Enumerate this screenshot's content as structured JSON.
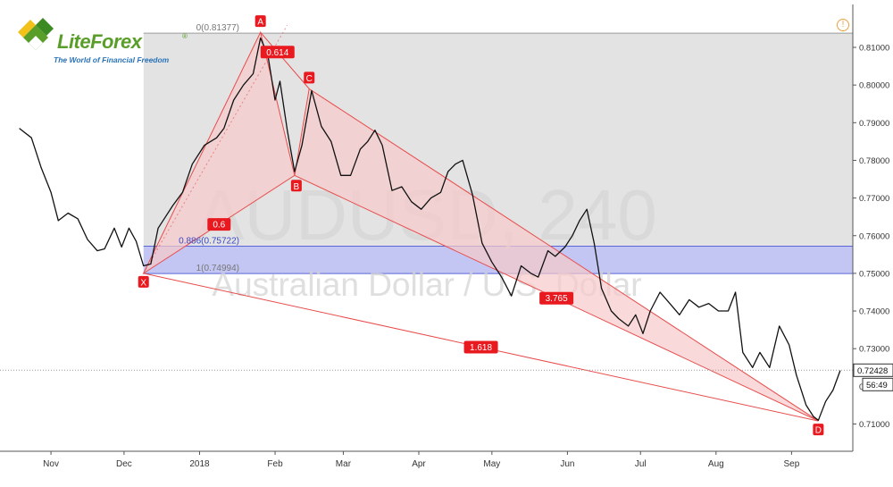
{
  "brand": {
    "name": "LiteForex",
    "registered": "®",
    "tagline": "The World of Financial Freedom"
  },
  "watermark": {
    "symbol": "AUDUSD, 240",
    "description": "Australian Dollar / U.S. Dollar"
  },
  "alert_icon": "!",
  "colors": {
    "pattern_fill": "#f6c9c9",
    "pattern_line": "#e84c4c",
    "label_bg": "#e8191f",
    "fib_zone": "#e3e3e3",
    "blue_zone": "#b8bcf0",
    "price_line": "#111111"
  },
  "chart_data": {
    "type": "line",
    "title": "",
    "xlabel": "",
    "ylabel": "",
    "x_ticks": [
      "Nov",
      "Dec",
      "2018",
      "Feb",
      "Mar",
      "Apr",
      "May",
      "Jun",
      "Jul",
      "Aug",
      "Sep"
    ],
    "y_ticks": [
      "0.81000",
      "0.80000",
      "0.79000",
      "0.78000",
      "0.77000",
      "0.76000",
      "0.75000",
      "0.74000",
      "0.73000",
      "0.71000"
    ],
    "ylim": [
      0.7035,
      0.8183
    ],
    "current_price": "0.72428",
    "countdown": "56:49",
    "grid": false,
    "price_series": [
      {
        "d": "2017-10-19",
        "v": 0.7885
      },
      {
        "d": "2017-10-24",
        "v": 0.786
      },
      {
        "d": "2017-10-28",
        "v": 0.778
      },
      {
        "d": "2017-11-01",
        "v": 0.7715
      },
      {
        "d": "2017-11-04",
        "v": 0.764
      },
      {
        "d": "2017-11-08",
        "v": 0.766
      },
      {
        "d": "2017-11-12",
        "v": 0.7645
      },
      {
        "d": "2017-11-16",
        "v": 0.759
      },
      {
        "d": "2017-11-20",
        "v": 0.756
      },
      {
        "d": "2017-11-23",
        "v": 0.7565
      },
      {
        "d": "2017-11-27",
        "v": 0.762
      },
      {
        "d": "2017-11-30",
        "v": 0.757
      },
      {
        "d": "2017-12-03",
        "v": 0.762
      },
      {
        "d": "2017-12-06",
        "v": 0.7585
      },
      {
        "d": "2017-12-09",
        "v": 0.752
      },
      {
        "d": "2017-12-12",
        "v": 0.7525
      },
      {
        "d": "2017-12-15",
        "v": 0.762
      },
      {
        "d": "2017-12-18",
        "v": 0.765
      },
      {
        "d": "2017-12-21",
        "v": 0.768
      },
      {
        "d": "2017-12-25",
        "v": 0.7715
      },
      {
        "d": "2017-12-29",
        "v": 0.779
      },
      {
        "d": "2018-01-03",
        "v": 0.784
      },
      {
        "d": "2018-01-08",
        "v": 0.786
      },
      {
        "d": "2018-01-11",
        "v": 0.7885
      },
      {
        "d": "2018-01-15",
        "v": 0.796
      },
      {
        "d": "2018-01-19",
        "v": 0.8
      },
      {
        "d": "2018-01-23",
        "v": 0.803
      },
      {
        "d": "2018-01-26",
        "v": 0.8125
      },
      {
        "d": "2018-01-29",
        "v": 0.808
      },
      {
        "d": "2018-02-01",
        "v": 0.796
      },
      {
        "d": "2018-02-03",
        "v": 0.801
      },
      {
        "d": "2018-02-06",
        "v": 0.788
      },
      {
        "d": "2018-02-09",
        "v": 0.777
      },
      {
        "d": "2018-02-12",
        "v": 0.784
      },
      {
        "d": "2018-02-16",
        "v": 0.7985
      },
      {
        "d": "2018-02-20",
        "v": 0.789
      },
      {
        "d": "2018-02-24",
        "v": 0.785
      },
      {
        "d": "2018-02-28",
        "v": 0.776
      },
      {
        "d": "2018-03-04",
        "v": 0.776
      },
      {
        "d": "2018-03-08",
        "v": 0.783
      },
      {
        "d": "2018-03-11",
        "v": 0.785
      },
      {
        "d": "2018-03-14",
        "v": 0.788
      },
      {
        "d": "2018-03-17",
        "v": 0.784
      },
      {
        "d": "2018-03-21",
        "v": 0.772
      },
      {
        "d": "2018-03-25",
        "v": 0.773
      },
      {
        "d": "2018-03-29",
        "v": 0.769
      },
      {
        "d": "2018-04-02",
        "v": 0.767
      },
      {
        "d": "2018-04-06",
        "v": 0.77
      },
      {
        "d": "2018-04-10",
        "v": 0.7715
      },
      {
        "d": "2018-04-13",
        "v": 0.777
      },
      {
        "d": "2018-04-16",
        "v": 0.779
      },
      {
        "d": "2018-04-19",
        "v": 0.78
      },
      {
        "d": "2018-04-23",
        "v": 0.771
      },
      {
        "d": "2018-04-27",
        "v": 0.758
      },
      {
        "d": "2018-05-01",
        "v": 0.753
      },
      {
        "d": "2018-05-05",
        "v": 0.749
      },
      {
        "d": "2018-05-09",
        "v": 0.744
      },
      {
        "d": "2018-05-13",
        "v": 0.752
      },
      {
        "d": "2018-05-17",
        "v": 0.75
      },
      {
        "d": "2018-05-20",
        "v": 0.749
      },
      {
        "d": "2018-05-24",
        "v": 0.756
      },
      {
        "d": "2018-05-27",
        "v": 0.7545
      },
      {
        "d": "2018-05-31",
        "v": 0.757
      },
      {
        "d": "2018-06-03",
        "v": 0.76
      },
      {
        "d": "2018-06-06",
        "v": 0.764
      },
      {
        "d": "2018-06-09",
        "v": 0.767
      },
      {
        "d": "2018-06-12",
        "v": 0.758
      },
      {
        "d": "2018-06-15",
        "v": 0.746
      },
      {
        "d": "2018-06-19",
        "v": 0.74
      },
      {
        "d": "2018-06-22",
        "v": 0.738
      },
      {
        "d": "2018-06-26",
        "v": 0.736
      },
      {
        "d": "2018-06-29",
        "v": 0.739
      },
      {
        "d": "2018-07-02",
        "v": 0.734
      },
      {
        "d": "2018-07-05",
        "v": 0.74
      },
      {
        "d": "2018-07-09",
        "v": 0.745
      },
      {
        "d": "2018-07-13",
        "v": 0.742
      },
      {
        "d": "2018-07-17",
        "v": 0.739
      },
      {
        "d": "2018-07-21",
        "v": 0.743
      },
      {
        "d": "2018-07-25",
        "v": 0.741
      },
      {
        "d": "2018-07-29",
        "v": 0.742
      },
      {
        "d": "2018-08-02",
        "v": 0.74
      },
      {
        "d": "2018-08-06",
        "v": 0.74
      },
      {
        "d": "2018-08-09",
        "v": 0.745
      },
      {
        "d": "2018-08-12",
        "v": 0.729
      },
      {
        "d": "2018-08-16",
        "v": 0.725
      },
      {
        "d": "2018-08-19",
        "v": 0.729
      },
      {
        "d": "2018-08-23",
        "v": 0.725
      },
      {
        "d": "2018-08-27",
        "v": 0.736
      },
      {
        "d": "2018-08-31",
        "v": 0.731
      },
      {
        "d": "2018-09-03",
        "v": 0.723
      },
      {
        "d": "2018-09-07",
        "v": 0.715
      },
      {
        "d": "2018-09-10",
        "v": 0.712
      },
      {
        "d": "2018-09-12",
        "v": 0.711
      },
      {
        "d": "2018-09-15",
        "v": 0.716
      },
      {
        "d": "2018-09-18",
        "v": 0.719
      },
      {
        "d": "2018-09-21",
        "v": 0.7242
      }
    ],
    "pattern_points": [
      {
        "label": "X",
        "d": "2017-12-09",
        "v": 0.75
      },
      {
        "label": "A",
        "d": "2018-01-26",
        "v": 0.814
      },
      {
        "label": "B",
        "d": "2018-02-09",
        "v": 0.776
      },
      {
        "label": "C",
        "d": "2018-02-15",
        "v": 0.799
      },
      {
        "label": "D",
        "d": "2018-09-12",
        "v": 0.7108
      }
    ],
    "ratios": [
      "0.6",
      "0.614",
      "3.765",
      "1.618"
    ],
    "fib_levels": [
      {
        "label": "0(0.81377)",
        "v": 0.81377
      },
      {
        "label": "0.886(0.75722)",
        "v": 0.75722
      },
      {
        "label": "1(0.74994)",
        "v": 0.74994
      }
    ]
  }
}
